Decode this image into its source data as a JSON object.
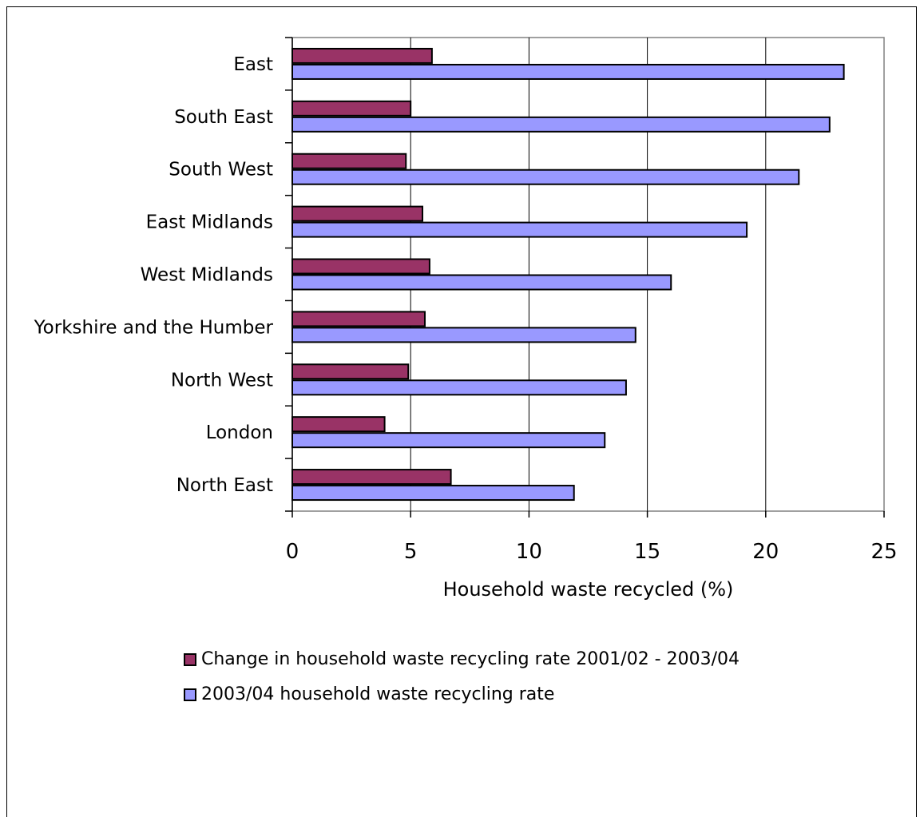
{
  "chart_data": {
    "type": "bar",
    "orientation": "horizontal",
    "categories": [
      "East",
      "South East",
      "South West",
      "East Midlands",
      "West Midlands",
      "Yorkshire and the Humber",
      "North West",
      "London",
      "North East"
    ],
    "series": [
      {
        "name": "Change in household waste recycling rate 2001/02 - 2003/04",
        "values": [
          5.9,
          5.0,
          4.8,
          5.5,
          5.8,
          5.6,
          4.9,
          3.9,
          6.7
        ],
        "color": "#993366"
      },
      {
        "name": "2003/04 household waste recycling rate",
        "values": [
          23.3,
          22.7,
          21.4,
          19.2,
          16.0,
          14.5,
          14.1,
          13.2,
          11.9
        ],
        "color": "#9999ff"
      }
    ],
    "xlabel": "Household waste recycled (%)",
    "ylabel": "",
    "xlim": [
      0,
      25
    ],
    "xticks": [
      0,
      5,
      10,
      15,
      20,
      25
    ],
    "grid": true,
    "legend": "bottom"
  }
}
